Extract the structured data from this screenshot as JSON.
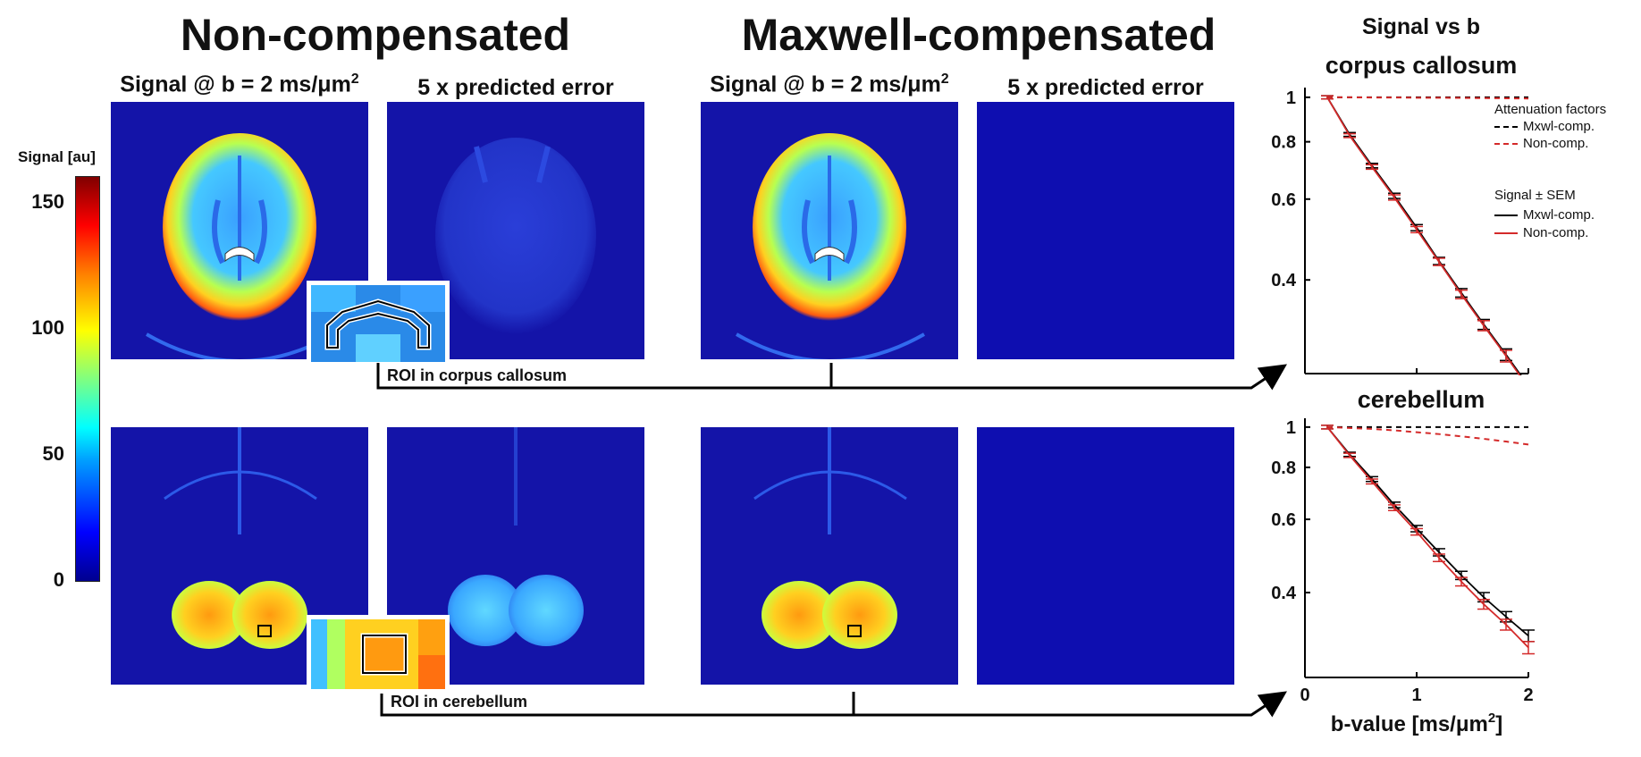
{
  "headings": {
    "non_compensated": "Non-compensated",
    "maxwell_compensated": "Maxwell-compensated"
  },
  "column_labels": {
    "signal_prefix": "Signal @ b = 2 ms/μm",
    "signal_sup": "2",
    "error": "5 x predicted error"
  },
  "colorbar": {
    "title": "Signal [au]",
    "ticks": [
      "150",
      "100",
      "50",
      "0"
    ],
    "tick_values": [
      150,
      100,
      50,
      0
    ],
    "range": [
      0,
      160
    ],
    "colormap": "jet"
  },
  "roi_labels": {
    "top": "ROI in corpus callosum",
    "bottom": "ROI in cerebellum"
  },
  "plot_titles": {
    "header": "Signal vs b",
    "top": "corpus callosum",
    "bottom": "cerebellum"
  },
  "legend": {
    "attenuation_title": "Attenuation factors",
    "attenuation_items": [
      "Mxwl-comp.",
      "Non-comp."
    ],
    "signal_title": "Signal ± SEM",
    "signal_items": [
      "Mxwl-comp.",
      "Non-comp."
    ]
  },
  "colors": {
    "maxwell": "#000000",
    "non_comp": "#d42a2a",
    "panel_bg": "#1414a8"
  },
  "chart_data": [
    {
      "type": "line",
      "title": "corpus callosum",
      "y_scale": "log",
      "ylim": [
        0.25,
        1.05
      ],
      "xlim": [
        0,
        2
      ],
      "x_ticks": [
        0,
        1,
        2
      ],
      "y_ticks": [
        1,
        0.8,
        0.6,
        0.4
      ],
      "y_tick_labels": [
        "1",
        "0.8",
        "0.6",
        "0.4"
      ],
      "x": [
        0.2,
        0.4,
        0.6,
        0.8,
        1.0,
        1.2,
        1.4,
        1.6,
        1.8,
        2.0
      ],
      "series": [
        {
          "name": "Mxwl-comp.",
          "kind": "signal",
          "values": [
            1.0,
            0.83,
            0.71,
            0.61,
            0.52,
            0.44,
            0.375,
            0.32,
            0.275,
            0.235
          ],
          "sem": 0.008
        },
        {
          "name": "Non-comp.",
          "kind": "signal",
          "values": [
            1.0,
            0.825,
            0.705,
            0.605,
            0.515,
            0.438,
            0.372,
            0.318,
            0.273,
            0.233
          ],
          "sem": 0.008
        },
        {
          "name": "Mxwl-comp.",
          "kind": "attenuation",
          "values": [
            1.0,
            1.0,
            1.0,
            1.0,
            1.0,
            1.0,
            1.0,
            1.0,
            1.0,
            1.0
          ]
        },
        {
          "name": "Non-comp.",
          "kind": "attenuation",
          "values": [
            1.0,
            1.0,
            0.999,
            0.999,
            0.998,
            0.998,
            0.997,
            0.996,
            0.995,
            0.994
          ]
        }
      ]
    },
    {
      "type": "line",
      "title": "cerebellum",
      "y_scale": "log",
      "ylim": [
        0.25,
        1.05
      ],
      "xlim": [
        0,
        2
      ],
      "x_ticks": [
        0,
        1,
        2
      ],
      "x_tick_labels": [
        "0",
        "1",
        "2"
      ],
      "xlabel_prefix": "b-value [ms/μm",
      "xlabel_sup": "2",
      "xlabel_suffix": "]",
      "y_ticks": [
        1,
        0.8,
        0.6,
        0.4
      ],
      "y_tick_labels": [
        "1",
        "0.8",
        "0.6",
        "0.4"
      ],
      "x": [
        0.2,
        0.4,
        0.6,
        0.8,
        1.0,
        1.2,
        1.4,
        1.6,
        1.8,
        2.0
      ],
      "series": [
        {
          "name": "Mxwl-comp.",
          "kind": "signal",
          "values": [
            1.0,
            0.86,
            0.75,
            0.65,
            0.57,
            0.5,
            0.44,
            0.39,
            0.35,
            0.315
          ],
          "sem": 0.01
        },
        {
          "name": "Non-comp.",
          "kind": "signal",
          "values": [
            1.0,
            0.855,
            0.74,
            0.64,
            0.56,
            0.485,
            0.425,
            0.375,
            0.335,
            0.295
          ],
          "sem": 0.01
        },
        {
          "name": "Mxwl-comp.",
          "kind": "attenuation",
          "values": [
            1.0,
            1.0,
            1.0,
            1.0,
            1.0,
            1.0,
            1.0,
            1.0,
            1.0,
            1.0
          ]
        },
        {
          "name": "Non-comp.",
          "kind": "attenuation",
          "values": [
            1.0,
            0.995,
            0.99,
            0.982,
            0.972,
            0.962,
            0.95,
            0.937,
            0.923,
            0.908
          ]
        }
      ]
    }
  ]
}
